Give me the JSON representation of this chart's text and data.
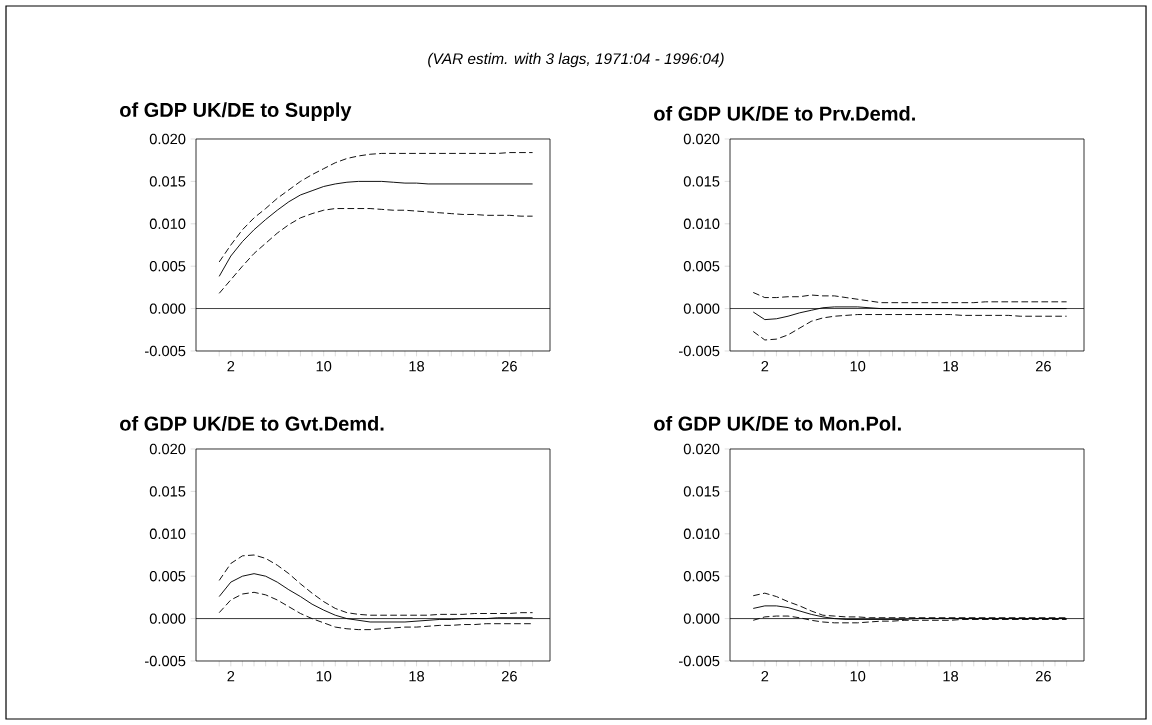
{
  "chart_data": [
    {
      "type": "line",
      "subtitle": "(VAR estim. with 3 lags, 1971:04 - 1996:04)",
      "title": "of GDP UK/DE  to Supply",
      "x": [
        1,
        2,
        3,
        4,
        5,
        6,
        7,
        8,
        9,
        10,
        11,
        12,
        13,
        14,
        15,
        16,
        17,
        18,
        19,
        20,
        21,
        22,
        23,
        24,
        25,
        26,
        27,
        28
      ],
      "xlim": [
        -1,
        29.5
      ],
      "xticks": [
        {
          "value": 1,
          "label": null
        },
        2,
        {
          "value": 3,
          "label": null
        },
        {
          "value": 4,
          "label": null
        },
        {
          "value": 5,
          "label": null
        },
        {
          "value": 6,
          "label": null
        },
        {
          "value": 7,
          "label": null
        },
        {
          "value": 8,
          "label": null
        },
        {
          "value": 9,
          "label": null
        },
        10,
        {
          "value": 11,
          "label": null
        },
        {
          "value": 12,
          "label": null
        },
        {
          "value": 13,
          "label": null
        },
        {
          "value": 14,
          "label": null
        },
        {
          "value": 15,
          "label": null
        },
        {
          "value": 16,
          "label": null
        },
        {
          "value": 17,
          "label": null
        },
        18,
        {
          "value": 19,
          "label": null
        },
        {
          "value": 20,
          "label": null
        },
        {
          "value": 21,
          "label": null
        },
        {
          "value": 22,
          "label": null
        },
        {
          "value": 23,
          "label": null
        },
        {
          "value": 24,
          "label": null
        },
        {
          "value": 25,
          "label": null
        },
        26,
        {
          "value": 27,
          "label": null
        },
        {
          "value": 28,
          "label": null
        }
      ],
      "ylim": [
        -0.005,
        0.02
      ],
      "yticks": [
        {
          "value": -0.005,
          "label": "-0.005"
        },
        {
          "value": 0,
          "label": "0.000"
        },
        {
          "value": 0.005,
          "label": "0.005"
        },
        {
          "value": 0.01,
          "label": "0.010"
        },
        {
          "value": 0.015,
          "label": "0.015"
        },
        {
          "value": 0.02,
          "label": "0.020"
        }
      ],
      "ref_lines": [
        {
          "axis": "y",
          "value": 0,
          "color": "#000000"
        }
      ],
      "series": [
        {
          "color": "#000000",
          "line_style": "solid",
          "values": [
            0.0038,
            0.0062,
            0.0079,
            0.0093,
            0.0105,
            0.0116,
            0.0126,
            0.0134,
            0.0139,
            0.0144,
            0.0147,
            0.0149,
            0.015,
            0.015,
            0.015,
            0.0149,
            0.0148,
            0.0148,
            0.0147,
            0.0147,
            0.0147,
            0.0147,
            0.0147,
            0.0147,
            0.0147,
            0.0147,
            0.0147,
            0.0147
          ]
        },
        {
          "color": "#000000",
          "line_style": "dashed",
          "values": [
            0.0055,
            0.0075,
            0.0093,
            0.0107,
            0.0118,
            0.013,
            0.014,
            0.015,
            0.0158,
            0.0165,
            0.0172,
            0.0177,
            0.018,
            0.0182,
            0.0183,
            0.0183,
            0.0183,
            0.0183,
            0.0183,
            0.0183,
            0.0183,
            0.0183,
            0.0183,
            0.0183,
            0.0183,
            0.0184,
            0.0184,
            0.0184
          ]
        },
        {
          "color": "#000000",
          "line_style": "dashed",
          "values": [
            0.0018,
            0.0034,
            0.005,
            0.0065,
            0.0077,
            0.0089,
            0.0099,
            0.0107,
            0.0112,
            0.0116,
            0.0118,
            0.0118,
            0.0118,
            0.0118,
            0.0117,
            0.0116,
            0.0116,
            0.0115,
            0.0114,
            0.0113,
            0.0112,
            0.0111,
            0.0111,
            0.011,
            0.011,
            0.011,
            0.0109,
            0.0109
          ]
        }
      ]
    },
    {
      "type": "line",
      "title": "of GDP UK/DE  to Prv.Demd.",
      "x": [
        1,
        2,
        3,
        4,
        5,
        6,
        7,
        8,
        9,
        10,
        11,
        12,
        13,
        14,
        15,
        16,
        17,
        18,
        19,
        20,
        21,
        22,
        23,
        24,
        25,
        26,
        27,
        28
      ],
      "xlim": [
        -1,
        29.5
      ],
      "xticks": [
        {
          "value": 1,
          "label": null
        },
        2,
        {
          "value": 3,
          "label": null
        },
        {
          "value": 4,
          "label": null
        },
        {
          "value": 5,
          "label": null
        },
        {
          "value": 6,
          "label": null
        },
        {
          "value": 7,
          "label": null
        },
        {
          "value": 8,
          "label": null
        },
        {
          "value": 9,
          "label": null
        },
        10,
        {
          "value": 11,
          "label": null
        },
        {
          "value": 12,
          "label": null
        },
        {
          "value": 13,
          "label": null
        },
        {
          "value": 14,
          "label": null
        },
        {
          "value": 15,
          "label": null
        },
        {
          "value": 16,
          "label": null
        },
        {
          "value": 17,
          "label": null
        },
        18,
        {
          "value": 19,
          "label": null
        },
        {
          "value": 20,
          "label": null
        },
        {
          "value": 21,
          "label": null
        },
        {
          "value": 22,
          "label": null
        },
        {
          "value": 23,
          "label": null
        },
        {
          "value": 24,
          "label": null
        },
        {
          "value": 25,
          "label": null
        },
        26,
        {
          "value": 27,
          "label": null
        },
        {
          "value": 28,
          "label": null
        }
      ],
      "ylim": [
        -0.005,
        0.02
      ],
      "yticks": [
        {
          "value": -0.005,
          "label": "-0.005"
        },
        {
          "value": 0,
          "label": "0.000"
        },
        {
          "value": 0.005,
          "label": "0.005"
        },
        {
          "value": 0.01,
          "label": "0.010"
        },
        {
          "value": 0.015,
          "label": "0.015"
        },
        {
          "value": 0.02,
          "label": "0.020"
        }
      ],
      "ref_lines": [
        {
          "axis": "y",
          "value": 0,
          "color": "#000000"
        }
      ],
      "series": [
        {
          "color": "#000000",
          "line_style": "solid",
          "values": [
            -0.0004,
            -0.0013,
            -0.0012,
            -0.0009,
            -0.0005,
            -0.0002,
            0.0001,
            0.0002,
            0.0002,
            0.0002,
            0.0001,
            0,
            0,
            0,
            0,
            0,
            0,
            0,
            0,
            0,
            0,
            0,
            0,
            0,
            0,
            0,
            0,
            0
          ]
        },
        {
          "color": "#000000",
          "line_style": "dashed",
          "values": [
            0.0019,
            0.0013,
            0.0013,
            0.0014,
            0.0014,
            0.0016,
            0.0015,
            0.0015,
            0.0013,
            0.0011,
            0.0009,
            0.0007,
            0.0007,
            0.0007,
            0.0007,
            0.0007,
            0.0007,
            0.0007,
            0.0007,
            0.0007,
            0.0008,
            0.0008,
            0.0008,
            0.0008,
            0.0008,
            0.0008,
            0.0008,
            0.0008
          ]
        },
        {
          "color": "#000000",
          "line_style": "dashed",
          "values": [
            -0.0027,
            -0.0037,
            -0.0036,
            -0.0031,
            -0.0023,
            -0.0015,
            -0.0011,
            -0.0009,
            -0.0008,
            -0.0007,
            -0.0007,
            -0.0007,
            -0.0007,
            -0.0007,
            -0.0007,
            -0.0007,
            -0.0007,
            -0.0007,
            -0.0008,
            -0.0008,
            -0.0008,
            -0.0008,
            -0.0008,
            -0.0009,
            -0.0009,
            -0.0009,
            -0.0009,
            -0.0009
          ]
        }
      ]
    },
    {
      "type": "line",
      "title": "of GDP UK/DE  to Gvt.Demd.",
      "x": [
        1,
        2,
        3,
        4,
        5,
        6,
        7,
        8,
        9,
        10,
        11,
        12,
        13,
        14,
        15,
        16,
        17,
        18,
        19,
        20,
        21,
        22,
        23,
        24,
        25,
        26,
        27,
        28
      ],
      "xlim": [
        -1,
        29.5
      ],
      "xticks": [
        {
          "value": 1,
          "label": null
        },
        2,
        {
          "value": 3,
          "label": null
        },
        {
          "value": 4,
          "label": null
        },
        {
          "value": 5,
          "label": null
        },
        {
          "value": 6,
          "label": null
        },
        {
          "value": 7,
          "label": null
        },
        {
          "value": 8,
          "label": null
        },
        {
          "value": 9,
          "label": null
        },
        10,
        {
          "value": 11,
          "label": null
        },
        {
          "value": 12,
          "label": null
        },
        {
          "value": 13,
          "label": null
        },
        {
          "value": 14,
          "label": null
        },
        {
          "value": 15,
          "label": null
        },
        {
          "value": 16,
          "label": null
        },
        {
          "value": 17,
          "label": null
        },
        18,
        {
          "value": 19,
          "label": null
        },
        {
          "value": 20,
          "label": null
        },
        {
          "value": 21,
          "label": null
        },
        {
          "value": 22,
          "label": null
        },
        {
          "value": 23,
          "label": null
        },
        {
          "value": 24,
          "label": null
        },
        {
          "value": 25,
          "label": null
        },
        26,
        {
          "value": 27,
          "label": null
        },
        {
          "value": 28,
          "label": null
        }
      ],
      "ylim": [
        -0.005,
        0.02
      ],
      "yticks": [
        {
          "value": -0.005,
          "label": "-0.005"
        },
        {
          "value": 0,
          "label": "0.000"
        },
        {
          "value": 0.005,
          "label": "0.005"
        },
        {
          "value": 0.01,
          "label": "0.010"
        },
        {
          "value": 0.015,
          "label": "0.015"
        },
        {
          "value": 0.02,
          "label": "0.020"
        }
      ],
      "ref_lines": [
        {
          "axis": "y",
          "value": 0,
          "color": "#000000"
        }
      ],
      "series": [
        {
          "color": "#000000",
          "line_style": "solid",
          "values": [
            0.0026,
            0.0043,
            0.005,
            0.0053,
            0.005,
            0.0043,
            0.0034,
            0.0026,
            0.0017,
            0.001,
            0.0004,
            0,
            -0.0002,
            -0.0004,
            -0.0004,
            -0.0004,
            -0.0004,
            -0.0003,
            -0.0002,
            -0.0001,
            -0.0001,
            0,
            0,
            0,
            0.0001,
            0.0001,
            0.0001,
            0.0001
          ]
        },
        {
          "color": "#000000",
          "line_style": "dashed",
          "values": [
            0.0045,
            0.0065,
            0.0074,
            0.0075,
            0.0071,
            0.0063,
            0.0053,
            0.0041,
            0.003,
            0.002,
            0.0012,
            0.0007,
            0.0005,
            0.0004,
            0.0004,
            0.0004,
            0.0004,
            0.0004,
            0.0004,
            0.0005,
            0.0005,
            0.0005,
            0.0006,
            0.0006,
            0.0006,
            0.0006,
            0.0007,
            0.0007
          ]
        },
        {
          "color": "#000000",
          "line_style": "dashed",
          "values": [
            0.0007,
            0.0022,
            0.0029,
            0.0031,
            0.0028,
            0.0022,
            0.0014,
            0.0006,
            0,
            -0.0005,
            -0.001,
            -0.0012,
            -0.0013,
            -0.0013,
            -0.0012,
            -0.0011,
            -0.001,
            -0.001,
            -0.0009,
            -0.0008,
            -0.0008,
            -0.0007,
            -0.0007,
            -0.0006,
            -0.0006,
            -0.0006,
            -0.0006,
            -0.0006
          ]
        }
      ]
    },
    {
      "type": "line",
      "title": "of GDP UK/DE  to Mon.Pol.",
      "x": [
        1,
        2,
        3,
        4,
        5,
        6,
        7,
        8,
        9,
        10,
        11,
        12,
        13,
        14,
        15,
        16,
        17,
        18,
        19,
        20,
        21,
        22,
        23,
        24,
        25,
        26,
        27,
        28
      ],
      "xlim": [
        -1,
        29.5
      ],
      "xticks": [
        {
          "value": 1,
          "label": null
        },
        2,
        {
          "value": 3,
          "label": null
        },
        {
          "value": 4,
          "label": null
        },
        {
          "value": 5,
          "label": null
        },
        {
          "value": 6,
          "label": null
        },
        {
          "value": 7,
          "label": null
        },
        {
          "value": 8,
          "label": null
        },
        {
          "value": 9,
          "label": null
        },
        10,
        {
          "value": 11,
          "label": null
        },
        {
          "value": 12,
          "label": null
        },
        {
          "value": 13,
          "label": null
        },
        {
          "value": 14,
          "label": null
        },
        {
          "value": 15,
          "label": null
        },
        {
          "value": 16,
          "label": null
        },
        {
          "value": 17,
          "label": null
        },
        18,
        {
          "value": 19,
          "label": null
        },
        {
          "value": 20,
          "label": null
        },
        {
          "value": 21,
          "label": null
        },
        {
          "value": 22,
          "label": null
        },
        {
          "value": 23,
          "label": null
        },
        {
          "value": 24,
          "label": null
        },
        {
          "value": 25,
          "label": null
        },
        26,
        {
          "value": 27,
          "label": null
        },
        {
          "value": 28,
          "label": null
        }
      ],
      "ylim": [
        -0.005,
        0.02
      ],
      "yticks": [
        {
          "value": -0.005,
          "label": "-0.005"
        },
        {
          "value": 0,
          "label": "0.000"
        },
        {
          "value": 0.005,
          "label": "0.005"
        },
        {
          "value": 0.01,
          "label": "0.010"
        },
        {
          "value": 0.015,
          "label": "0.015"
        },
        {
          "value": 0.02,
          "label": "0.020"
        }
      ],
      "ref_lines": [
        {
          "axis": "y",
          "value": 0,
          "color": "#000000"
        }
      ],
      "series": [
        {
          "color": "#000000",
          "line_style": "solid",
          "values": [
            0.0012,
            0.0015,
            0.0015,
            0.0013,
            0.0009,
            0.0005,
            0.0002,
            0,
            -0.0001,
            -0.0001,
            -0.0001,
            -0.0001,
            -0.0001,
            -0.0001,
            0,
            0,
            0,
            0,
            0,
            0,
            0,
            0,
            0,
            0,
            0,
            0,
            0,
            0
          ]
        },
        {
          "color": "#000000",
          "line_style": "dashed",
          "values": [
            0.0027,
            0.003,
            0.0026,
            0.002,
            0.0015,
            0.0009,
            0.0004,
            0.0003,
            0.0002,
            0.0002,
            0.0001,
            0.0001,
            0.0001,
            0.0001,
            0.0001,
            0.0001,
            0.0001,
            0.0001,
            0.0001,
            0.0001,
            0.0001,
            0.0001,
            0.0001,
            0.0001,
            0.0001,
            0.0001,
            0.0001,
            0.0001
          ]
        },
        {
          "color": "#000000",
          "line_style": "dashed",
          "values": [
            -0.0002,
            0.0002,
            0.0003,
            0.0003,
            0.0001,
            -0.0002,
            -0.0004,
            -0.0005,
            -0.0005,
            -0.0005,
            -0.0004,
            -0.0003,
            -0.0003,
            -0.0002,
            -0.0002,
            -0.0002,
            -0.0002,
            -0.0002,
            -0.0001,
            -0.0001,
            -0.0001,
            -0.0001,
            -0.0001,
            -0.0001,
            -0.0001,
            -0.0001,
            -0.0001,
            -0.0001
          ]
        }
      ]
    }
  ]
}
